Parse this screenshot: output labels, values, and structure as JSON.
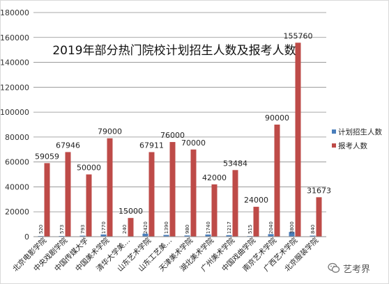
{
  "watermark": {
    "text": "艺考界",
    "icon": "wechat-logo-icon"
  },
  "chart_data": {
    "type": "bar",
    "title": "2019年部分热门院校计划招生人数及报考人数",
    "categories": [
      "北京电影学院",
      "中央戏剧学院",
      "中国传媒大学",
      "中国美术学院",
      "清华大学美…",
      "山东艺术学院",
      "山东工艺美…",
      "天津美术学院",
      "湖北美术学院",
      "广州美术学院",
      "中国戏曲学院",
      "南京艺术学院",
      "广西艺术学院",
      "北京服装学院"
    ],
    "series": [
      {
        "name": "计划招生人数",
        "color": "#4a7ebb",
        "values": [
          520,
          573,
          793,
          1770,
          240,
          2420,
          1390,
          980,
          1740,
          1217,
          515,
          2040,
          3800,
          840
        ]
      },
      {
        "name": "报考人数",
        "color": "#be4b48",
        "values": [
          59059,
          67946,
          50000,
          79000,
          15000,
          67911,
          76000,
          70000,
          42000,
          53484,
          24000,
          90000,
          155760,
          31673
        ]
      }
    ],
    "ylim": [
      0,
      180000
    ],
    "yticks": [
      0,
      20000,
      40000,
      60000,
      80000,
      100000,
      120000,
      140000,
      160000,
      180000
    ],
    "grid": true,
    "legend": "right"
  }
}
